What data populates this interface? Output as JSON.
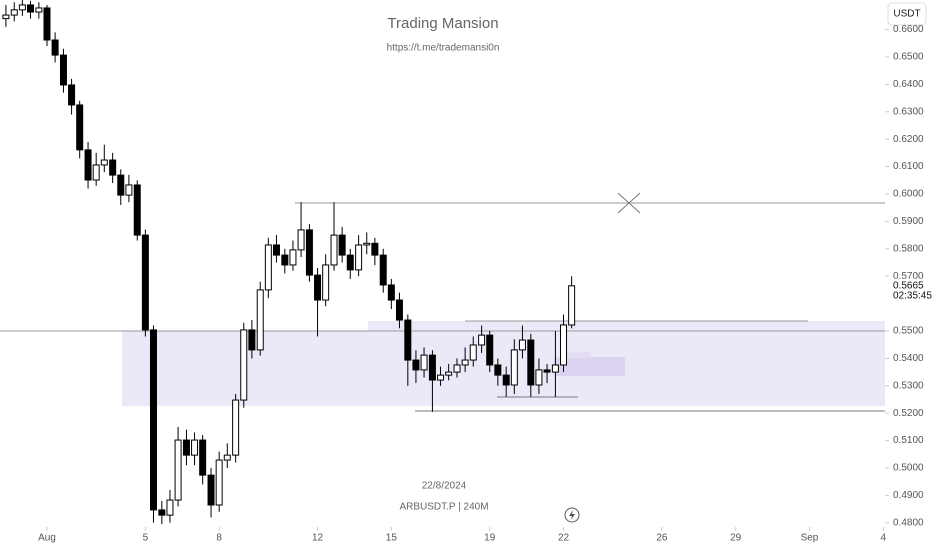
{
  "chart_data": {
    "type": "candlestick",
    "title": "Trading Mansion",
    "subtitle": "https://t.me/trademansi0n",
    "date_label": "22/8/2024",
    "symbol_label": "ARBUSDT.P | 240M",
    "currency": "USDT",
    "up_color": "#ffffff",
    "down_color": "#000000",
    "zone_color": "#ebe8f8",
    "grid": false,
    "last_price": {
      "value": 0.5665,
      "label": "0.5665"
    },
    "countdown": "02:35:45",
    "xlim": [
      -0.91,
      35.07
    ],
    "ylim": [
      0.4792,
      0.6708
    ],
    "xticks": [
      {
        "value": 1,
        "label": "Aug"
      },
      5,
      8,
      12,
      15,
      19,
      22,
      26,
      29,
      {
        "value": 32,
        "label": "Sep"
      },
      {
        "value": 35,
        "label": "4"
      }
    ],
    "yticks": [
      {
        "value": 0.48,
        "label": "0.4800"
      },
      {
        "value": 0.49,
        "label": "0.4900"
      },
      {
        "value": 0.5,
        "label": "0.5000"
      },
      {
        "value": 0.51,
        "label": "0.5100"
      },
      {
        "value": 0.52,
        "label": "0.5200"
      },
      {
        "value": 0.53,
        "label": "0.5300"
      },
      {
        "value": 0.54,
        "label": "0.5400"
      },
      {
        "value": 0.55,
        "label": "0.5500"
      },
      {
        "value": 0.57,
        "label": "0.5700"
      },
      {
        "value": 0.58,
        "label": "0.5800"
      },
      {
        "value": 0.59,
        "label": "0.5900"
      },
      {
        "value": 0.6,
        "label": "0.6000"
      },
      {
        "value": 0.61,
        "label": "0.6100"
      },
      {
        "value": 0.62,
        "label": "0.6200"
      },
      {
        "value": 0.63,
        "label": "0.6300"
      },
      {
        "value": 0.64,
        "label": "0.6400"
      },
      {
        "value": 0.65,
        "label": "0.6500"
      },
      {
        "value": 0.66,
        "label": "0.6600"
      }
    ],
    "x": [
      -0.67,
      -0.33,
      0.0,
      0.33,
      0.67,
      1.0,
      1.33,
      1.67,
      2.0,
      2.33,
      2.67,
      3.0,
      3.33,
      3.67,
      4.0,
      4.33,
      4.67,
      5.0,
      5.33,
      5.67,
      6.0,
      6.33,
      6.67,
      7.0,
      7.33,
      7.67,
      8.0,
      8.33,
      8.67,
      9.0,
      9.33,
      9.67,
      10.0,
      10.33,
      10.67,
      11.0,
      11.33,
      11.67,
      12.0,
      12.33,
      12.67,
      13.0,
      13.33,
      13.67,
      14.0,
      14.33,
      14.67,
      15.0,
      15.33,
      15.67,
      16.0,
      16.33,
      16.67,
      17.0,
      17.33,
      17.67,
      18.0,
      18.33,
      18.67,
      19.0,
      19.33,
      19.67,
      20.0,
      20.33,
      20.67,
      21.0,
      21.33,
      21.67,
      22.0,
      22.33
    ],
    "open": [
      0.664,
      0.6653,
      0.6672,
      0.669,
      0.6664,
      0.6679,
      0.6562,
      0.6507,
      0.6398,
      0.6325,
      0.6161,
      0.6051,
      0.6106,
      0.6124,
      0.6069,
      0.5996,
      0.6033,
      0.585,
      0.5504,
      0.4847,
      0.4828,
      0.4883,
      0.5102,
      0.5047,
      0.5102,
      0.4974,
      0.4865,
      0.5029,
      0.5047,
      0.5248,
      0.5504,
      0.5431,
      0.565,
      0.5814,
      0.5777,
      0.5741,
      0.5796,
      0.5869,
      0.5704,
      0.5613,
      0.5741,
      0.585,
      0.5777,
      0.5723,
      0.5814,
      0.582,
      0.5777,
      0.5668,
      0.5613,
      0.554,
      0.5394,
      0.5358,
      0.5412,
      0.5321,
      0.5339,
      0.535,
      0.5376,
      0.5394,
      0.5449,
      0.5485,
      0.5376,
      0.5339,
      0.5303,
      0.5431,
      0.5467,
      0.5303,
      0.5358,
      0.535,
      0.5376,
      0.5522
    ],
    "high": [
      0.669,
      0.67,
      0.671,
      0.6705,
      0.67,
      0.669,
      0.659,
      0.653,
      0.642,
      0.634,
      0.619,
      0.615,
      0.618,
      0.615,
      0.609,
      0.607,
      0.605,
      0.587,
      0.552,
      0.488,
      0.492,
      0.515,
      0.514,
      0.513,
      0.512,
      0.5,
      0.506,
      0.509,
      0.527,
      0.553,
      0.554,
      0.568,
      0.584,
      0.585,
      0.58,
      0.583,
      0.597,
      0.589,
      0.573,
      0.578,
      0.597,
      0.588,
      0.58,
      0.585,
      0.586,
      0.584,
      0.58,
      0.569,
      0.564,
      0.556,
      0.543,
      0.544,
      0.543,
      0.537,
      0.538,
      0.54,
      0.544,
      0.548,
      0.552,
      0.55,
      0.54,
      0.537,
      0.547,
      0.552,
      0.549,
      0.54,
      0.538,
      0.55,
      0.556,
      0.57
    ],
    "low": [
      0.661,
      0.663,
      0.665,
      0.664,
      0.664,
      0.654,
      0.648,
      0.637,
      0.629,
      0.613,
      0.602,
      0.603,
      0.608,
      0.604,
      0.596,
      0.597,
      0.583,
      0.548,
      0.48,
      0.4795,
      0.48,
      0.486,
      0.501,
      0.501,
      0.494,
      0.482,
      0.484,
      0.5,
      0.502,
      0.522,
      0.54,
      0.541,
      0.562,
      0.575,
      0.571,
      0.572,
      0.577,
      0.568,
      0.548,
      0.559,
      0.572,
      0.575,
      0.569,
      0.57,
      0.578,
      0.574,
      0.564,
      0.558,
      0.551,
      0.53,
      0.531,
      0.533,
      0.5205,
      0.53,
      0.532,
      0.533,
      0.535,
      0.537,
      0.542,
      0.535,
      0.53,
      0.526,
      0.527,
      0.54,
      0.526,
      0.527,
      0.531,
      0.526,
      0.535,
      0.551
    ],
    "close": [
      0.6653,
      0.6672,
      0.669,
      0.6664,
      0.6679,
      0.6562,
      0.6507,
      0.6398,
      0.6325,
      0.6161,
      0.6051,
      0.6106,
      0.6124,
      0.6069,
      0.5996,
      0.6033,
      0.585,
      0.5504,
      0.4847,
      0.4828,
      0.4883,
      0.5102,
      0.5047,
      0.5102,
      0.4974,
      0.4865,
      0.5029,
      0.5047,
      0.5248,
      0.5504,
      0.5431,
      0.565,
      0.5814,
      0.5777,
      0.5741,
      0.5796,
      0.5869,
      0.5704,
      0.5613,
      0.5741,
      0.585,
      0.5777,
      0.5723,
      0.5814,
      0.582,
      0.5777,
      0.5668,
      0.5613,
      0.554,
      0.5394,
      0.5358,
      0.5412,
      0.5321,
      0.5339,
      0.535,
      0.5376,
      0.5394,
      0.5449,
      0.5485,
      0.5376,
      0.5339,
      0.5303,
      0.5431,
      0.5467,
      0.5303,
      0.5358,
      0.535,
      0.5376,
      0.5522,
      0.5665
    ]
  }
}
